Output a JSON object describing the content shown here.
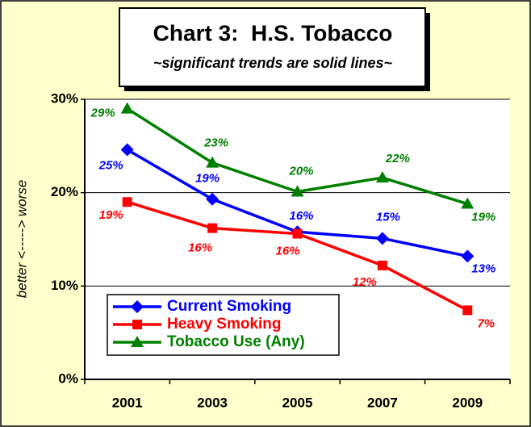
{
  "chart_data": {
    "type": "line",
    "title": "Chart 3:  H.S. Tobacco",
    "subtitle": "~significant trends are solid lines~",
    "y_label": "better <-----> worse",
    "categories": [
      "2001",
      "2003",
      "2005",
      "2007",
      "2009"
    ],
    "series": [
      {
        "name": "Current Smoking",
        "color": "#0000ff",
        "marker": "diamond",
        "values": [
          24.6,
          19.3,
          15.8,
          15.1,
          13.2
        ],
        "value_labels": [
          "25%",
          "19%",
          "16%",
          "15%",
          "13%"
        ]
      },
      {
        "name": "Heavy Smoking",
        "color": "#ff0000",
        "marker": "square",
        "values": [
          19.0,
          16.2,
          15.6,
          12.2,
          7.4
        ],
        "value_labels": [
          "19%",
          "16%",
          "16%",
          "12%",
          "7%"
        ]
      },
      {
        "name": "Tobacco Use (Any)",
        "color": "#008000",
        "marker": "triangle",
        "values": [
          29.0,
          23.2,
          20.1,
          21.6,
          18.8
        ],
        "value_labels": [
          "29%",
          "23%",
          "20%",
          "22%",
          "19%"
        ]
      }
    ],
    "ylim": [
      0,
      30
    ],
    "yticks": [
      {
        "value": 0,
        "label": "0%"
      },
      {
        "value": 10,
        "label": "10%"
      },
      {
        "value": 20,
        "label": "20%"
      },
      {
        "value": 30,
        "label": "30%"
      }
    ],
    "grid": true,
    "legend": "lower left"
  }
}
